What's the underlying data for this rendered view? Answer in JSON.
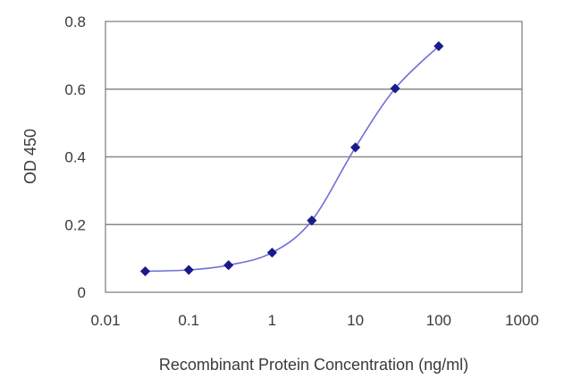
{
  "chart_data": {
    "type": "line",
    "x_scale": "log",
    "xlabel": "Recombinant Protein Concentration (ng/ml)",
    "ylabel": "OD 450",
    "xlim": [
      0.01,
      1000
    ],
    "ylim": [
      0,
      0.8
    ],
    "x_ticks": [
      "0.01",
      "0.1",
      "1",
      "10",
      "100",
      "1000"
    ],
    "y_ticks": [
      "0",
      "0.2",
      "0.4",
      "0.6",
      "0.8"
    ],
    "grid": "horizontal",
    "series": [
      {
        "x": [
          0.03,
          0.1,
          0.3,
          1,
          3,
          10,
          30,
          100
        ],
        "y": [
          0.062,
          0.066,
          0.08,
          0.117,
          0.212,
          0.428,
          0.602,
          0.727
        ],
        "color": "#1a1a8c",
        "line_color": "#6f6fd8",
        "marker": "diamond"
      }
    ]
  }
}
